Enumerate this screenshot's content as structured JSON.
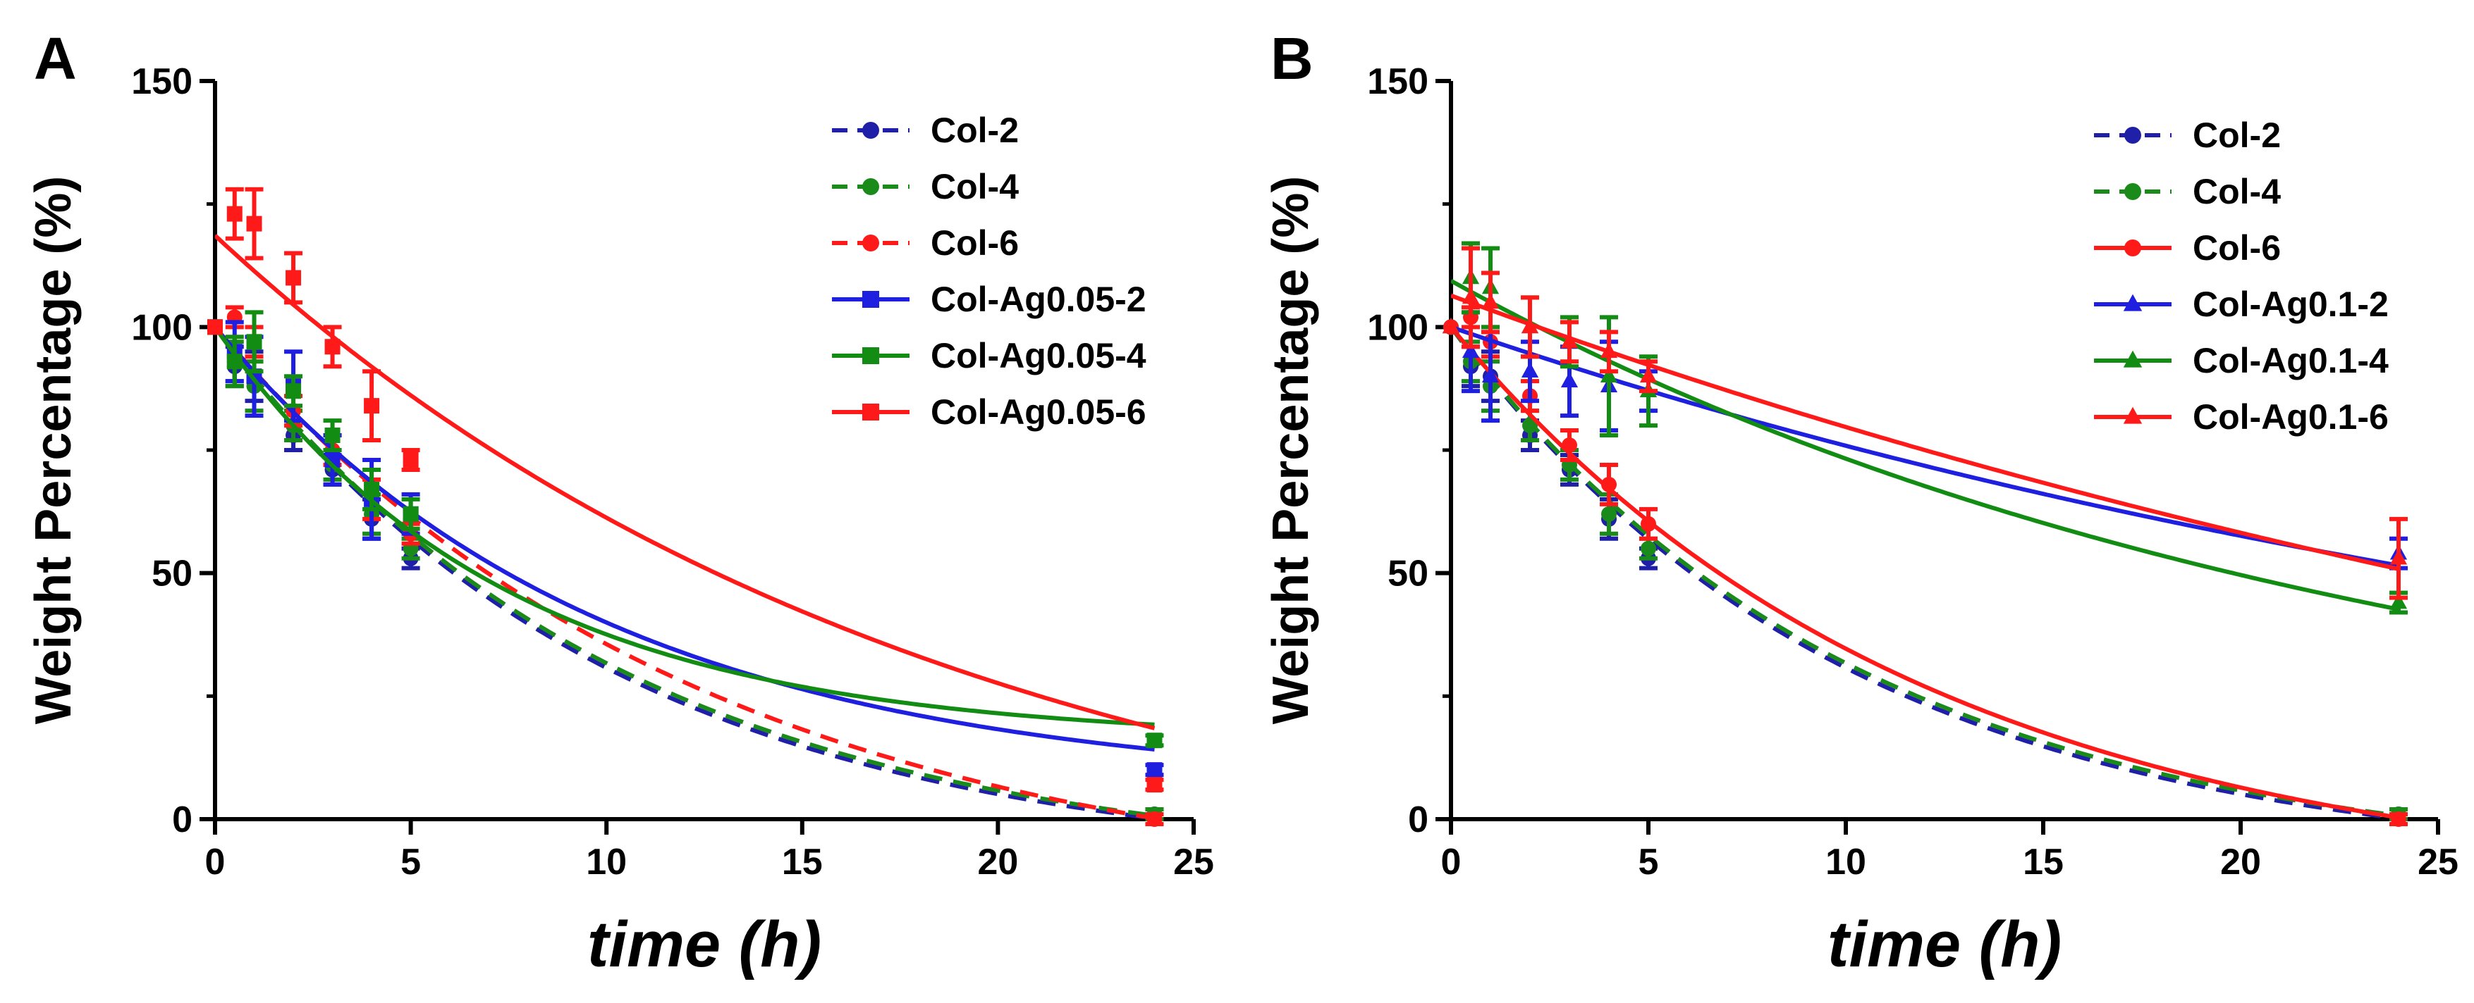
{
  "chart_data": [
    {
      "panel": "A",
      "type": "scatter",
      "xlabel": "time (h)",
      "ylabel": "Weight Percentage (%)",
      "xlim": [
        0,
        25
      ],
      "ylim": [
        0,
        150
      ],
      "xticks": [
        "0",
        "5",
        "10",
        "15",
        "20",
        "25"
      ],
      "yticks": [
        "0",
        "50",
        "100",
        "150"
      ],
      "legend_position": "top-right",
      "series": [
        {
          "name": "Col-2",
          "color": "#1f1fa8",
          "marker": "circle",
          "line": "dashed",
          "x": [
            0,
            0.5,
            1,
            2,
            3,
            4,
            5,
            24
          ],
          "y": [
            100,
            92,
            90,
            78,
            71,
            61,
            53,
            1
          ],
          "err": [
            0,
            4,
            5,
            3,
            3,
            4,
            2,
            1
          ],
          "fit": {
            "a": 100,
            "k": 0.0993,
            "c": -10
          }
        },
        {
          "name": "Col-4",
          "color": "#1a8a1a",
          "marker": "circle",
          "line": "dashed",
          "x": [
            0,
            0.5,
            1,
            2,
            3,
            4,
            5,
            24
          ],
          "y": [
            100,
            93,
            88,
            80,
            72,
            62,
            55,
            1
          ],
          "err": [
            0,
            4,
            5,
            3,
            3,
            4,
            2,
            1
          ],
          "fit": {
            "a": 100,
            "k": 0.097,
            "c": -10
          }
        },
        {
          "name": "Col-6",
          "color": "#ff1a1a",
          "marker": "circle",
          "line": "dashed",
          "x": [
            0,
            0.5,
            1,
            2,
            3,
            4,
            5,
            24
          ],
          "y": [
            100,
            102,
            97,
            83,
            75,
            65,
            58,
            0
          ],
          "err": [
            0,
            2,
            3,
            3,
            3,
            4,
            2,
            1
          ],
          "fit": {
            "a": 100,
            "k": 0.08,
            "c": -17
          }
        },
        {
          "name": "Col-Ag0.05-2",
          "color": "#1f1fe0",
          "marker": "square",
          "line": "solid",
          "x": [
            0,
            0.5,
            1,
            2,
            3,
            4,
            5,
            24
          ],
          "y": [
            100,
            95,
            90,
            88,
            73,
            65,
            62,
            10
          ],
          "err": [
            0,
            6,
            8,
            7,
            5,
            8,
            4,
            1
          ],
          "fit": {
            "a": 100,
            "k": 0.1018,
            "c": 6
          }
        },
        {
          "name": "Col-Ag0.05-4",
          "color": "#128c12",
          "marker": "square",
          "line": "solid",
          "x": [
            0,
            0.5,
            1,
            2,
            3,
            4,
            5,
            24
          ],
          "y": [
            100,
            93,
            97,
            87,
            78,
            67,
            62,
            16
          ],
          "err": [
            0,
            5,
            6,
            3,
            3,
            4,
            3,
            1
          ],
          "fit": {
            "a": 100,
            "k": 0.1361,
            "c": 16
          }
        },
        {
          "name": "Col-Ag0.05-6",
          "color": "#ff1a1a",
          "marker": "square",
          "line": "solid",
          "x": [
            0,
            0.5,
            1,
            2,
            3,
            4,
            5,
            24
          ],
          "y": [
            100,
            123,
            121,
            110,
            96,
            84,
            73,
            7
          ],
          "err": [
            0,
            5,
            7,
            5,
            4,
            7,
            2,
            1
          ],
          "fit": {
            "a": 118.6,
            "k": 0.0534,
            "c": -20
          }
        }
      ]
    },
    {
      "panel": "B",
      "type": "scatter",
      "xlabel": "time (h)",
      "ylabel": "Weight Percentage (%)",
      "xlim": [
        0,
        25
      ],
      "ylim": [
        0,
        150
      ],
      "xticks": [
        "0",
        "5",
        "10",
        "15",
        "20",
        "25"
      ],
      "yticks": [
        "0",
        "50",
        "100",
        "150"
      ],
      "legend_position": "top-right",
      "series": [
        {
          "name": "Col-2",
          "color": "#1f1fa8",
          "marker": "circle",
          "line": "dashed",
          "x": [
            0,
            0.5,
            1,
            2,
            3,
            4,
            5,
            24
          ],
          "y": [
            100,
            92,
            90,
            78,
            71,
            61,
            53,
            1
          ],
          "err": [
            0,
            4,
            5,
            3,
            3,
            4,
            2,
            1
          ],
          "fit": {
            "a": 100,
            "k": 0.0993,
            "c": -10
          }
        },
        {
          "name": "Col-4",
          "color": "#1a8a1a",
          "marker": "circle",
          "line": "dashed",
          "x": [
            0,
            0.5,
            1,
            2,
            3,
            4,
            5,
            24
          ],
          "y": [
            100,
            93,
            88,
            80,
            72,
            62,
            55,
            1
          ],
          "err": [
            0,
            4,
            5,
            3,
            3,
            4,
            2,
            1
          ],
          "fit": {
            "a": 100,
            "k": 0.097,
            "c": -10
          }
        },
        {
          "name": "Col-6",
          "color": "#ff1a1a",
          "marker": "circle",
          "line": "solid",
          "x": [
            0,
            0.5,
            1,
            2,
            3,
            4,
            5,
            24
          ],
          "y": [
            100,
            102,
            97,
            86,
            76,
            68,
            60,
            0
          ],
          "err": [
            0,
            2,
            3,
            3,
            3,
            4,
            3,
            1
          ],
          "fit": {
            "a": 100,
            "k": 0.084,
            "c": -15
          }
        },
        {
          "name": "Col-Ag0.1-2",
          "color": "#1f1fe0",
          "marker": "triangle",
          "line": "solid",
          "x": [
            0,
            0.5,
            1,
            2,
            3,
            4,
            5,
            24
          ],
          "y": [
            100,
            95,
            90,
            91,
            89,
            88,
            87,
            54
          ],
          "err": [
            0,
            8,
            9,
            6,
            7,
            9,
            4,
            3
          ],
          "fit": {
            "a": 100,
            "k": 0.0276,
            "c": 0
          }
        },
        {
          "name": "Col-Ag0.1-4",
          "color": "#128c12",
          "marker": "triangle",
          "line": "solid",
          "x": [
            0,
            0.5,
            1,
            2,
            3,
            4,
            5,
            24
          ],
          "y": [
            100,
            110,
            108,
            100,
            97,
            90,
            87,
            44
          ],
          "err": [
            0,
            7,
            8,
            6,
            5,
            12,
            7,
            2
          ],
          "fit": {
            "a": 109.4,
            "k": 0.0425,
            "c": 5
          }
        },
        {
          "name": "Col-Ag0.1-6",
          "color": "#ff1a1a",
          "marker": "triangle",
          "line": "solid",
          "x": [
            0,
            0.5,
            1,
            2,
            3,
            4,
            5,
            24
          ],
          "y": [
            100,
            106,
            105,
            100,
            97,
            95,
            90,
            53
          ],
          "err": [
            0,
            10,
            6,
            6,
            4,
            4,
            3,
            8
          ],
          "fit": {
            "a": 106.4,
            "k": 0.0218,
            "c": -30
          }
        }
      ]
    }
  ]
}
